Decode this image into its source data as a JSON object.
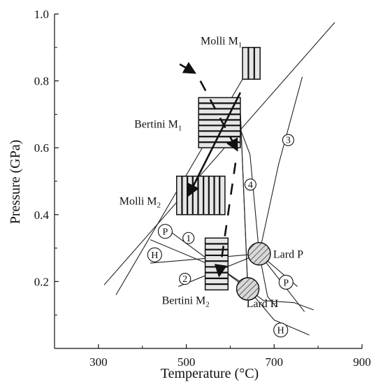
{
  "chart_data": {
    "type": "scatter",
    "xlabel": "Temperature (°C)",
    "ylabel": "Pressure (GPa)",
    "xlim": [
      200,
      900
    ],
    "ylim": [
      0.0,
      1.0
    ],
    "xticks": [
      "300",
      "500",
      "700",
      "900"
    ],
    "yticks": [
      "0.2",
      "0.4",
      "0.6",
      "0.8",
      "1.0"
    ],
    "boxes": [
      {
        "label": "Molli M",
        "sub": "1",
        "x": [
          628,
          668
        ],
        "y": [
          0.805,
          0.9
        ],
        "hatch": "vertical"
      },
      {
        "label": "Bertini M",
        "sub": "1",
        "x": [
          528,
          623
        ],
        "y": [
          0.6,
          0.75
        ],
        "hatch": "horizontal"
      },
      {
        "label": "Molli M",
        "sub": "2",
        "x": [
          478,
          588
        ],
        "y": [
          0.4,
          0.515
        ],
        "hatch": "vertical"
      },
      {
        "label": "Bertini M",
        "sub": "2",
        "x": [
          543,
          595
        ],
        "y": [
          0.175,
          0.33
        ],
        "hatch": "horizontal"
      }
    ],
    "points": [
      {
        "label": "Lard P",
        "x": 666,
        "y": 0.283
      },
      {
        "label": "Lard H",
        "x": 640,
        "y": 0.178
      }
    ],
    "lines": [
      {
        "points": [
          [
            313,
            0.19
          ],
          [
            838,
            0.975
          ]
        ]
      },
      {
        "points": [
          [
            340,
            0.16
          ],
          [
            666,
            0.89
          ]
        ]
      },
      {
        "points": [
          [
            418,
            0.255
          ],
          [
            666,
            0.283
          ],
          [
            753,
            0.185
          ]
        ]
      },
      {
        "points": [
          [
            458,
            0.355
          ],
          [
            676,
            0.143
          ]
        ]
      },
      {
        "points": [
          [
            418,
            0.325
          ],
          [
            582,
            0.235
          ],
          [
            630,
            0.193
          ]
        ]
      },
      {
        "points": [
          [
            482,
            0.185
          ],
          [
            666,
            0.283
          ],
          [
            769,
            0.11
          ]
        ]
      },
      {
        "points": [
          [
            600,
            0.735
          ],
          [
            645,
            0.58
          ],
          [
            666,
            0.283
          ],
          [
            685,
            0.155
          ],
          [
            704,
            0.125
          ]
        ]
      },
      {
        "points": [
          [
            666,
            0.283
          ],
          [
            710,
            0.55
          ],
          [
            764,
            0.812
          ]
        ]
      },
      {
        "points": [
          [
            623,
            0.708
          ],
          [
            640,
            0.178
          ],
          [
            700,
            0.085
          ],
          [
            780,
            0.04
          ]
        ]
      },
      {
        "points": [
          [
            623,
            0.708
          ],
          [
            640,
            0.178
          ]
        ]
      },
      {
        "points": [
          [
            676,
            0.143
          ],
          [
            745,
            0.137
          ],
          [
            790,
            0.115
          ]
        ]
      }
    ],
    "circled_labels": [
      {
        "text": "P",
        "x": 452,
        "y": 0.35
      },
      {
        "text": "H",
        "x": 428,
        "y": 0.28
      },
      {
        "text": "1",
        "x": 505,
        "y": 0.33
      },
      {
        "text": "2",
        "x": 497,
        "y": 0.208
      },
      {
        "text": "3",
        "x": 732,
        "y": 0.623
      },
      {
        "text": "4",
        "x": 646,
        "y": 0.49
      },
      {
        "text": "P",
        "x": 727,
        "y": 0.198
      },
      {
        "text": "H",
        "x": 715,
        "y": 0.055
      }
    ],
    "arrows": [
      {
        "style": "solid",
        "from": [
          623,
          0.765
        ],
        "to": [
          506,
          0.46
        ]
      },
      {
        "style": "solid",
        "from": [
          485,
          0.85
        ],
        "to": [
          518,
          0.825
        ]
      },
      {
        "style": "dashed",
        "from": [
          532,
          0.8
        ],
        "to": [
          615,
          0.595
        ]
      },
      {
        "style": "dashed",
        "from": [
          612,
          0.555
        ],
        "to": [
          575,
          0.22
        ]
      }
    ]
  }
}
